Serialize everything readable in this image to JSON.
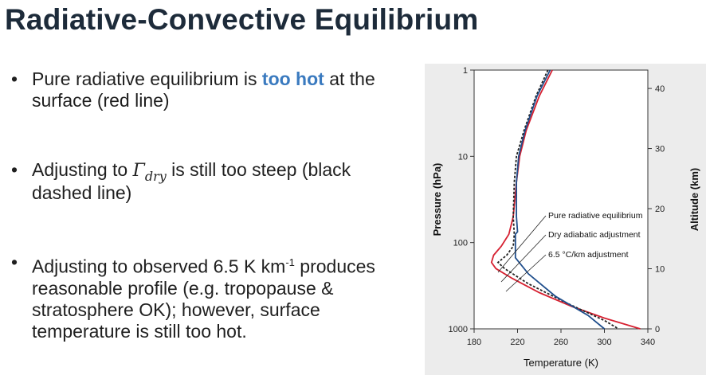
{
  "slide": {
    "title": "Radiative-Convective Equilibrium",
    "bullets": [
      {
        "before": "Pure radiative equilibrium is ",
        "highlight": "too hot",
        "after": " at the surface (red line)"
      },
      {
        "before": "Adjusting to ",
        "math_symbol": "Γ",
        "math_sub": "dry",
        "after": " is still too steep (black dashed line)"
      },
      {
        "before": "Adjusting to observed 6.5 K km",
        "superscript": "-1",
        "after": " produces reasonable profile  (e.g. tropopause & stratosphere OK); however, surface temperature is still too hot."
      }
    ],
    "bullet_symbol": "•"
  },
  "chart_data": {
    "type": "line",
    "xlabel": "Temperature (K)",
    "ylabel": "Pressure (hPa)",
    "y2label": "Altitude (km)",
    "xlim": [
      180,
      340
    ],
    "ylim": [
      1000,
      1
    ],
    "yscale": "log",
    "xticks": [
      "180",
      "220",
      "260",
      "300",
      "340"
    ],
    "yticks": [
      "1",
      "10",
      "100",
      "1000"
    ],
    "y2ticks": [
      "0",
      "10",
      "20",
      "30",
      "40"
    ],
    "series": [
      {
        "name": "Pure radiative equilibrium",
        "color": "#d62030",
        "style": "solid",
        "x": [
          252,
          240,
          228,
          222,
          219,
          216,
          212,
          205,
          198,
          196,
          200,
          215,
          240,
          270,
          300,
          333
        ],
        "y": [
          1,
          2,
          5,
          10,
          20,
          50,
          80,
          110,
          140,
          170,
          200,
          260,
          380,
          550,
          750,
          1000
        ]
      },
      {
        "name": "Dry adiabatic adjustment",
        "color": "#222222",
        "style": "dashed",
        "x": [
          248,
          237,
          226,
          219,
          217,
          216,
          217,
          216,
          210,
          202,
          208,
          230,
          265,
          300,
          313
        ],
        "y": [
          1,
          2,
          5,
          10,
          20,
          50,
          80,
          110,
          140,
          170,
          200,
          300,
          500,
          800,
          1000
        ]
      },
      {
        "name": "6.5 °C/km adjustment",
        "color": "#1f4e8c",
        "style": "solid",
        "x": [
          250,
          238,
          227,
          221,
          219,
          219,
          220,
          218,
          218,
          230,
          255,
          285,
          300
        ],
        "y": [
          1,
          2,
          5,
          10,
          20,
          50,
          75,
          80,
          150,
          230,
          420,
          700,
          1000
        ]
      }
    ],
    "legend_placement": "inside right-center, labels with leader lines"
  }
}
